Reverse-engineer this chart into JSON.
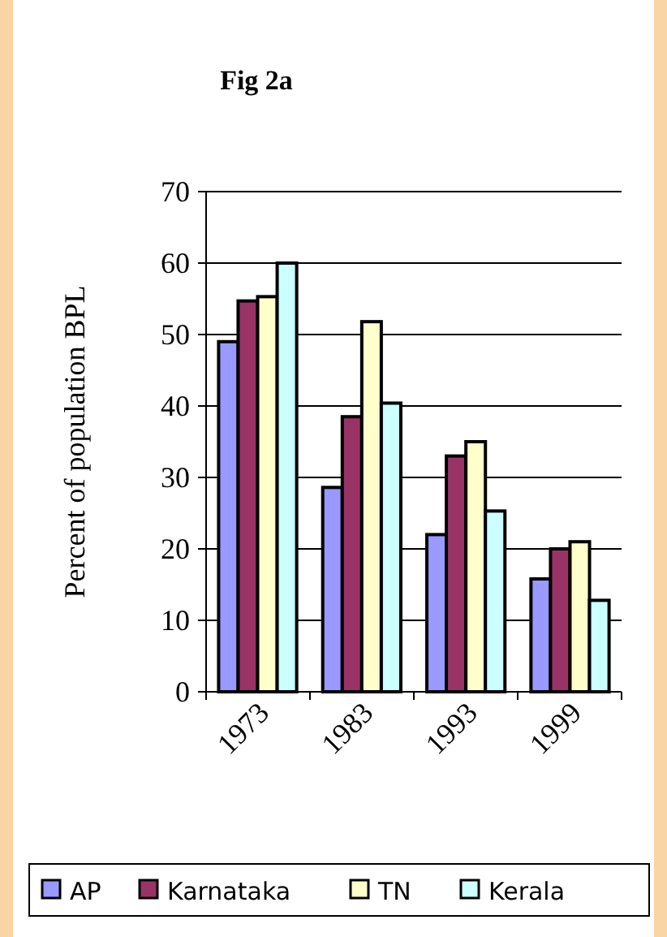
{
  "chart_data": {
    "type": "bar",
    "title": "Fig 2a",
    "ylabel": "Percent of population BPL",
    "categories": [
      "1973",
      "1983",
      "1993",
      "1999"
    ],
    "series": [
      {
        "name": "AP",
        "color": "#9999ff",
        "values": [
          49,
          28.6,
          22,
          15.8
        ]
      },
      {
        "name": "Karnataka",
        "color": "#993366",
        "values": [
          54.7,
          38.5,
          33,
          20
        ]
      },
      {
        "name": "TN",
        "color": "#ffffcc",
        "values": [
          55.3,
          51.8,
          35,
          21
        ]
      },
      {
        "name": "Kerala",
        "color": "#ccffff",
        "values": [
          60,
          40.4,
          25.3,
          12.8
        ]
      }
    ],
    "ylim": [
      0,
      70
    ],
    "yticks": [
      0,
      10,
      20,
      30,
      40,
      50,
      60,
      70
    ],
    "grid": "y",
    "legend": "bottom"
  }
}
